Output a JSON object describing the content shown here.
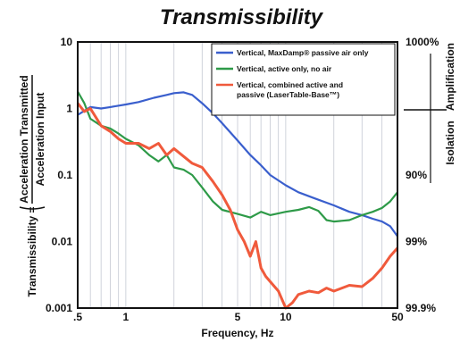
{
  "chart_data": {
    "type": "line",
    "title": "Transmissibility",
    "xlabel": "Frequency, Hz",
    "ylabel_prefix": "Transmissibility =",
    "ylabel_numerator": "Acceleration Transmitted",
    "ylabel_denominator": "Acceleration Input",
    "x_scale": "log",
    "y_scale": "log",
    "xlim": [
      0.5,
      50
    ],
    "ylim": [
      0.001,
      10
    ],
    "x_ticks": [
      {
        "value": 0.5,
        "label": ".5"
      },
      {
        "value": 1,
        "label": "1"
      },
      {
        "value": 5,
        "label": "5"
      },
      {
        "value": 10,
        "label": "10"
      },
      {
        "value": 50,
        "label": "50"
      }
    ],
    "y_ticks": [
      {
        "value": 10,
        "label": "10"
      },
      {
        "value": 1,
        "label": "1"
      },
      {
        "value": 0.1,
        "label": "0.1"
      },
      {
        "value": 0.01,
        "label": "0.01"
      },
      {
        "value": 0.001,
        "label": "0.001"
      }
    ],
    "right_ticks": [
      {
        "value": 10,
        "label": "1000%"
      },
      {
        "value": 0.1,
        "label": "90%"
      },
      {
        "value": 0.01,
        "label": "99%"
      },
      {
        "value": 0.001,
        "label": "99.9%"
      }
    ],
    "right_labels": {
      "upper": "Amplification",
      "lower": "Isolation",
      "divider_value": 1
    },
    "grid": {
      "vertical": true,
      "horizontal": false
    },
    "legend_position": "top-right",
    "series": [
      {
        "name": "Vertical, MaxDamp® passive air only",
        "color": "#3a5fcd",
        "x": [
          0.5,
          0.6,
          0.7,
          0.8,
          1.0,
          1.2,
          1.5,
          1.8,
          2.0,
          2.3,
          2.6,
          3.0,
          3.5,
          4.0,
          5.0,
          6.0,
          7.0,
          8.0,
          10.0,
          12.0,
          15.0,
          20.0,
          25.0,
          30.0,
          35.0,
          40.0,
          45.0,
          50.0
        ],
        "y": [
          0.8,
          1.05,
          1.0,
          1.05,
          1.15,
          1.25,
          1.45,
          1.6,
          1.7,
          1.75,
          1.6,
          1.2,
          0.85,
          0.6,
          0.33,
          0.2,
          0.14,
          0.1,
          0.07,
          0.055,
          0.045,
          0.035,
          0.028,
          0.025,
          0.022,
          0.02,
          0.017,
          0.012
        ]
      },
      {
        "name": "Vertical, active only, no air",
        "color": "#2e9a48",
        "x": [
          0.5,
          0.55,
          0.6,
          0.7,
          0.8,
          0.9,
          1.0,
          1.2,
          1.4,
          1.6,
          1.8,
          2.0,
          2.3,
          2.6,
          3.0,
          3.5,
          4.0,
          5.0,
          6.0,
          7.0,
          8.0,
          10.0,
          12.0,
          14.0,
          16.0,
          18.0,
          20.0,
          25.0,
          30.0,
          35.0,
          40.0,
          45.0,
          50.0
        ],
        "y": [
          1.8,
          1.2,
          0.7,
          0.55,
          0.5,
          0.42,
          0.35,
          0.28,
          0.2,
          0.16,
          0.2,
          0.13,
          0.12,
          0.1,
          0.065,
          0.04,
          0.03,
          0.026,
          0.023,
          0.028,
          0.025,
          0.028,
          0.03,
          0.033,
          0.029,
          0.021,
          0.02,
          0.021,
          0.025,
          0.028,
          0.032,
          0.04,
          0.055
        ]
      },
      {
        "name": "Vertical, combined active and passive (LaserTable-Base™)",
        "color": "#f05a3c",
        "x": [
          0.5,
          0.55,
          0.6,
          0.7,
          0.8,
          0.9,
          1.0,
          1.2,
          1.4,
          1.6,
          1.8,
          2.0,
          2.3,
          2.6,
          3.0,
          3.5,
          4.0,
          4.5,
          5.0,
          5.5,
          6.0,
          6.5,
          7.0,
          7.5,
          8.0,
          9.0,
          10.0,
          11.0,
          12.0,
          14.0,
          16.0,
          18.0,
          20.0,
          25.0,
          30.0,
          35.0,
          40.0,
          45.0,
          50.0
        ],
        "y": [
          1.2,
          0.9,
          1.0,
          0.55,
          0.45,
          0.35,
          0.3,
          0.3,
          0.25,
          0.3,
          0.2,
          0.25,
          0.19,
          0.15,
          0.13,
          0.08,
          0.05,
          0.03,
          0.015,
          0.01,
          0.006,
          0.01,
          0.004,
          0.003,
          0.0025,
          0.0018,
          0.001,
          0.0012,
          0.0016,
          0.0018,
          0.0017,
          0.002,
          0.0018,
          0.0022,
          0.0021,
          0.0028,
          0.004,
          0.006,
          0.008
        ]
      }
    ]
  }
}
